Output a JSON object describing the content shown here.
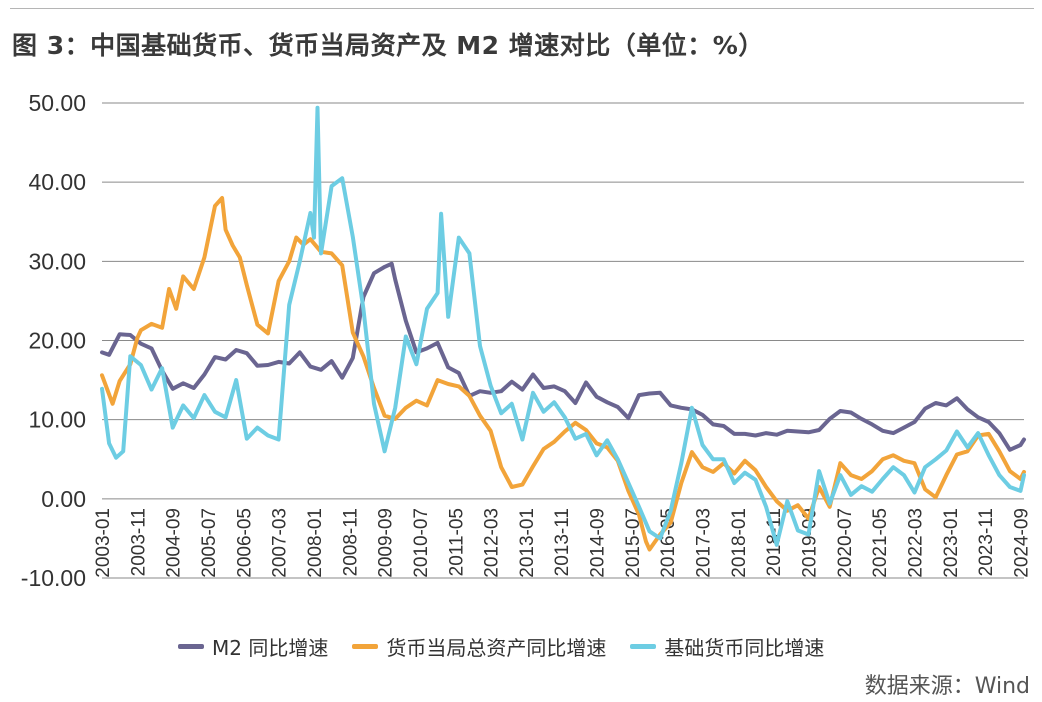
{
  "title": "图 3：中国基础货币、货币当局资产及 M2 增速对比（单位：%）",
  "source": "数据来源：Wind",
  "chart_data": {
    "type": "line",
    "ylim": [
      -10,
      50
    ],
    "yticks": [
      "50.00",
      "40.00",
      "30.00",
      "20.00",
      "10.00",
      "0.00",
      "-10.00"
    ],
    "ytick_values": [
      50,
      40,
      30,
      20,
      10,
      0,
      -10
    ],
    "grid": true,
    "legend_position": "bottom",
    "x_ticks": [
      "2003-01",
      "2003-11",
      "2004-09",
      "2005-07",
      "2006-05",
      "2007-03",
      "2008-01",
      "2008-11",
      "2009-09",
      "2010-07",
      "2011-05",
      "2012-03",
      "2013-01",
      "2013-11",
      "2014-09",
      "2015-07",
      "2016-05",
      "2017-03",
      "2018-01",
      "2018-11",
      "2019-09",
      "2020-07",
      "2021-05",
      "2022-03",
      "2023-01",
      "2023-11",
      "2024-09"
    ],
    "series": [
      {
        "name": "M2 同比增速",
        "color": "#6a6591",
        "points": [
          [
            "2003-01",
            18.5
          ],
          [
            "2003-03",
            18.2
          ],
          [
            "2003-06",
            20.8
          ],
          [
            "2003-09",
            20.7
          ],
          [
            "2003-12",
            19.6
          ],
          [
            "2004-03",
            19.0
          ],
          [
            "2004-06",
            16.2
          ],
          [
            "2004-09",
            13.9
          ],
          [
            "2004-12",
            14.6
          ],
          [
            "2005-03",
            14.0
          ],
          [
            "2005-06",
            15.7
          ],
          [
            "2005-09",
            17.9
          ],
          [
            "2005-12",
            17.6
          ],
          [
            "2006-03",
            18.8
          ],
          [
            "2006-06",
            18.4
          ],
          [
            "2006-09",
            16.8
          ],
          [
            "2006-12",
            16.9
          ],
          [
            "2007-03",
            17.3
          ],
          [
            "2007-06",
            17.1
          ],
          [
            "2007-09",
            18.5
          ],
          [
            "2007-12",
            16.7
          ],
          [
            "2008-03",
            16.3
          ],
          [
            "2008-06",
            17.4
          ],
          [
            "2008-09",
            15.3
          ],
          [
            "2008-12",
            17.8
          ],
          [
            "2009-03",
            25.5
          ],
          [
            "2009-06",
            28.5
          ],
          [
            "2009-09",
            29.3
          ],
          [
            "2009-11",
            29.7
          ],
          [
            "2009-12",
            27.7
          ],
          [
            "2010-03",
            22.5
          ],
          [
            "2010-06",
            18.5
          ],
          [
            "2010-09",
            19.0
          ],
          [
            "2010-12",
            19.7
          ],
          [
            "2011-03",
            16.6
          ],
          [
            "2011-06",
            15.9
          ],
          [
            "2011-09",
            13.0
          ],
          [
            "2011-12",
            13.6
          ],
          [
            "2012-03",
            13.4
          ],
          [
            "2012-06",
            13.6
          ],
          [
            "2012-09",
            14.8
          ],
          [
            "2012-12",
            13.8
          ],
          [
            "2013-03",
            15.7
          ],
          [
            "2013-06",
            14.0
          ],
          [
            "2013-09",
            14.2
          ],
          [
            "2013-12",
            13.6
          ],
          [
            "2014-03",
            12.1
          ],
          [
            "2014-06",
            14.7
          ],
          [
            "2014-09",
            12.9
          ],
          [
            "2014-12",
            12.2
          ],
          [
            "2015-03",
            11.6
          ],
          [
            "2015-06",
            10.2
          ],
          [
            "2015-09",
            13.1
          ],
          [
            "2015-12",
            13.3
          ],
          [
            "2016-03",
            13.4
          ],
          [
            "2016-06",
            11.8
          ],
          [
            "2016-09",
            11.5
          ],
          [
            "2016-12",
            11.3
          ],
          [
            "2017-03",
            10.6
          ],
          [
            "2017-06",
            9.4
          ],
          [
            "2017-09",
            9.2
          ],
          [
            "2017-12",
            8.2
          ],
          [
            "2018-03",
            8.2
          ],
          [
            "2018-06",
            8.0
          ],
          [
            "2018-09",
            8.3
          ],
          [
            "2018-12",
            8.1
          ],
          [
            "2019-03",
            8.6
          ],
          [
            "2019-06",
            8.5
          ],
          [
            "2019-09",
            8.4
          ],
          [
            "2019-12",
            8.7
          ],
          [
            "2020-03",
            10.1
          ],
          [
            "2020-06",
            11.1
          ],
          [
            "2020-09",
            10.9
          ],
          [
            "2020-12",
            10.1
          ],
          [
            "2021-03",
            9.4
          ],
          [
            "2021-06",
            8.6
          ],
          [
            "2021-09",
            8.3
          ],
          [
            "2021-12",
            9.0
          ],
          [
            "2022-03",
            9.7
          ],
          [
            "2022-06",
            11.4
          ],
          [
            "2022-09",
            12.1
          ],
          [
            "2022-12",
            11.8
          ],
          [
            "2023-03",
            12.7
          ],
          [
            "2023-06",
            11.3
          ],
          [
            "2023-09",
            10.3
          ],
          [
            "2023-12",
            9.7
          ],
          [
            "2024-03",
            8.3
          ],
          [
            "2024-06",
            6.2
          ],
          [
            "2024-09",
            6.8
          ],
          [
            "2024-10",
            7.5
          ]
        ]
      },
      {
        "name": "货币当局总资产同比增速",
        "color": "#f2a43a",
        "points": [
          [
            "2003-01",
            15.6
          ],
          [
            "2003-04",
            12.0
          ],
          [
            "2003-06",
            14.9
          ],
          [
            "2003-09",
            17.0
          ],
          [
            "2003-11",
            20.3
          ],
          [
            "2003-12",
            21.3
          ],
          [
            "2004-03",
            22.1
          ],
          [
            "2004-06",
            21.6
          ],
          [
            "2004-08",
            26.5
          ],
          [
            "2004-10",
            24.0
          ],
          [
            "2004-12",
            28.1
          ],
          [
            "2005-03",
            26.5
          ],
          [
            "2005-06",
            30.5
          ],
          [
            "2005-09",
            37.0
          ],
          [
            "2005-11",
            38.0
          ],
          [
            "2005-12",
            34.0
          ],
          [
            "2006-02",
            32.0
          ],
          [
            "2006-04",
            30.5
          ],
          [
            "2006-06",
            27.0
          ],
          [
            "2006-09",
            22.0
          ],
          [
            "2006-12",
            20.9
          ],
          [
            "2007-03",
            27.5
          ],
          [
            "2007-06",
            30.0
          ],
          [
            "2007-08",
            33.0
          ],
          [
            "2007-10",
            32.1
          ],
          [
            "2007-12",
            32.8
          ],
          [
            "2008-03",
            31.2
          ],
          [
            "2008-06",
            31.0
          ],
          [
            "2008-09",
            29.5
          ],
          [
            "2008-12",
            21.0
          ],
          [
            "2009-03",
            18.0
          ],
          [
            "2009-06",
            14.0
          ],
          [
            "2009-09",
            10.5
          ],
          [
            "2009-12",
            10.1
          ],
          [
            "2010-03",
            11.5
          ],
          [
            "2010-06",
            12.4
          ],
          [
            "2010-09",
            11.8
          ],
          [
            "2010-12",
            15.0
          ],
          [
            "2011-03",
            14.5
          ],
          [
            "2011-06",
            14.2
          ],
          [
            "2011-09",
            13.0
          ],
          [
            "2011-12",
            10.5
          ],
          [
            "2012-03",
            8.6
          ],
          [
            "2012-06",
            4.0
          ],
          [
            "2012-09",
            1.5
          ],
          [
            "2012-12",
            1.8
          ],
          [
            "2013-03",
            4.1
          ],
          [
            "2013-06",
            6.3
          ],
          [
            "2013-09",
            7.2
          ],
          [
            "2013-12",
            8.5
          ],
          [
            "2014-03",
            9.6
          ],
          [
            "2014-06",
            8.7
          ],
          [
            "2014-09",
            7.0
          ],
          [
            "2014-12",
            6.5
          ],
          [
            "2015-03",
            4.8
          ],
          [
            "2015-06",
            1.0
          ],
          [
            "2015-09",
            -2.0
          ],
          [
            "2015-11",
            -5.4
          ],
          [
            "2015-12",
            -6.4
          ],
          [
            "2016-03",
            -4.5
          ],
          [
            "2016-06",
            -3.0
          ],
          [
            "2016-09",
            2.0
          ],
          [
            "2016-12",
            5.9
          ],
          [
            "2017-03",
            4.0
          ],
          [
            "2017-06",
            3.4
          ],
          [
            "2017-09",
            4.5
          ],
          [
            "2017-12",
            3.2
          ],
          [
            "2018-03",
            4.8
          ],
          [
            "2018-06",
            3.6
          ],
          [
            "2018-09",
            1.5
          ],
          [
            "2018-12",
            -0.3
          ],
          [
            "2019-03",
            -1.5
          ],
          [
            "2019-06",
            -0.8
          ],
          [
            "2019-09",
            -2.5
          ],
          [
            "2019-12",
            1.5
          ],
          [
            "2020-03",
            -1.0
          ],
          [
            "2020-06",
            4.5
          ],
          [
            "2020-09",
            3.0
          ],
          [
            "2020-12",
            2.5
          ],
          [
            "2021-03",
            3.5
          ],
          [
            "2021-06",
            5.0
          ],
          [
            "2021-09",
            5.5
          ],
          [
            "2021-12",
            4.8
          ],
          [
            "2022-03",
            4.5
          ],
          [
            "2022-06",
            1.2
          ],
          [
            "2022-09",
            0.2
          ],
          [
            "2022-12",
            3.0
          ],
          [
            "2023-03",
            5.6
          ],
          [
            "2023-06",
            6.0
          ],
          [
            "2023-09",
            8.0
          ],
          [
            "2023-12",
            8.2
          ],
          [
            "2024-03",
            6.0
          ],
          [
            "2024-06",
            3.5
          ],
          [
            "2024-09",
            2.5
          ],
          [
            "2024-10",
            3.4
          ]
        ]
      },
      {
        "name": "基础货币同比增速",
        "color": "#6dcde3",
        "points": [
          [
            "2003-01",
            13.9
          ],
          [
            "2003-03",
            7.0
          ],
          [
            "2003-05",
            5.2
          ],
          [
            "2003-07",
            6.0
          ],
          [
            "2003-09",
            18.0
          ],
          [
            "2003-12",
            16.9
          ],
          [
            "2004-03",
            13.8
          ],
          [
            "2004-06",
            16.5
          ],
          [
            "2004-09",
            9.0
          ],
          [
            "2004-12",
            11.8
          ],
          [
            "2005-03",
            10.2
          ],
          [
            "2005-06",
            13.1
          ],
          [
            "2005-09",
            11.0
          ],
          [
            "2005-12",
            10.3
          ],
          [
            "2006-03",
            15.0
          ],
          [
            "2006-06",
            7.6
          ],
          [
            "2006-09",
            9.0
          ],
          [
            "2006-12",
            8.0
          ],
          [
            "2007-03",
            7.5
          ],
          [
            "2007-06",
            24.5
          ],
          [
            "2007-09",
            30.0
          ],
          [
            "2007-12",
            36.1
          ],
          [
            "2008-01",
            33.0
          ],
          [
            "2008-02",
            49.4
          ],
          [
            "2008-03",
            31.0
          ],
          [
            "2008-06",
            39.5
          ],
          [
            "2008-09",
            40.5
          ],
          [
            "2008-12",
            33.1
          ],
          [
            "2009-03",
            24.0
          ],
          [
            "2009-06",
            12.0
          ],
          [
            "2009-09",
            6.0
          ],
          [
            "2009-12",
            11.5
          ],
          [
            "2010-03",
            20.5
          ],
          [
            "2010-06",
            17.0
          ],
          [
            "2010-09",
            24.0
          ],
          [
            "2010-12",
            26.0
          ],
          [
            "2011-01",
            36.0
          ],
          [
            "2011-03",
            23.0
          ],
          [
            "2011-06",
            33.0
          ],
          [
            "2011-09",
            31.0
          ],
          [
            "2011-12",
            19.3
          ],
          [
            "2012-03",
            14.3
          ],
          [
            "2012-06",
            10.8
          ],
          [
            "2012-09",
            12.0
          ],
          [
            "2012-12",
            7.5
          ],
          [
            "2013-03",
            13.4
          ],
          [
            "2013-06",
            11.0
          ],
          [
            "2013-09",
            12.2
          ],
          [
            "2013-12",
            10.3
          ],
          [
            "2014-03",
            7.6
          ],
          [
            "2014-06",
            8.2
          ],
          [
            "2014-09",
            5.5
          ],
          [
            "2014-12",
            7.4
          ],
          [
            "2015-03",
            5.0
          ],
          [
            "2015-06",
            2.0
          ],
          [
            "2015-09",
            -1.0
          ],
          [
            "2015-12",
            -4.1
          ],
          [
            "2016-03",
            -5.0
          ],
          [
            "2016-06",
            -1.5
          ],
          [
            "2016-09",
            4.5
          ],
          [
            "2016-12",
            11.5
          ],
          [
            "2017-03",
            6.8
          ],
          [
            "2017-06",
            5.0
          ],
          [
            "2017-09",
            5.0
          ],
          [
            "2017-12",
            2.0
          ],
          [
            "2018-03",
            3.3
          ],
          [
            "2018-06",
            2.4
          ],
          [
            "2018-09",
            -1.0
          ],
          [
            "2018-12",
            -5.8
          ],
          [
            "2019-03",
            -0.3
          ],
          [
            "2019-06",
            -4.0
          ],
          [
            "2019-09",
            -4.5
          ],
          [
            "2019-12",
            3.5
          ],
          [
            "2020-03",
            -0.6
          ],
          [
            "2020-06",
            3.0
          ],
          [
            "2020-09",
            0.5
          ],
          [
            "2020-12",
            1.6
          ],
          [
            "2021-03",
            0.9
          ],
          [
            "2021-06",
            2.5
          ],
          [
            "2021-09",
            4.0
          ],
          [
            "2021-12",
            3.0
          ],
          [
            "2022-03",
            0.8
          ],
          [
            "2022-06",
            4.0
          ],
          [
            "2022-09",
            5.0
          ],
          [
            "2022-12",
            6.1
          ],
          [
            "2023-03",
            8.5
          ],
          [
            "2023-06",
            6.5
          ],
          [
            "2023-09",
            8.3
          ],
          [
            "2023-12",
            5.5
          ],
          [
            "2024-03",
            3.0
          ],
          [
            "2024-06",
            1.5
          ],
          [
            "2024-09",
            1.0
          ],
          [
            "2024-10",
            3.0
          ]
        ]
      }
    ]
  }
}
